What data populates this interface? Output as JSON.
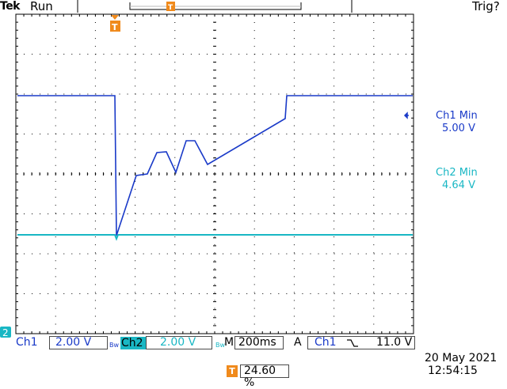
{
  "header": {
    "brand": "Tek",
    "acq_state": "Run",
    "trigger_state": "Trig?"
  },
  "readouts": {
    "ch1_title": "Ch1 Min",
    "ch1_value": "5.00 V",
    "ch2_title": "Ch2 Min",
    "ch2_value": "4.64 V"
  },
  "footer": {
    "ch1_label": "Ch1",
    "ch1_scale": "2.00 V",
    "bw1": "Bᴡ",
    "ch2_label": "Ch2",
    "ch2_scale": "2.00 V",
    "bw2": "Bᴡ",
    "timebase_label": "M",
    "timebase": "200ms",
    "trigger_mode": "A",
    "trigger_source": "Ch1",
    "trigger_slope_icon": "falling-edge-icon",
    "trigger_level": "11.0 V",
    "trigger_position_icon": "T",
    "trigger_position": "24.60 %",
    "date": "20 May 2021",
    "time": "12:54:15"
  },
  "markers": {
    "ch2_ground_marker": "2",
    "trigger_marker": "T"
  },
  "colors": {
    "ch1": "#1a3ac8",
    "ch2": "#19b7c4",
    "trigger": "#f08a1c",
    "grid": "#000000"
  }
}
